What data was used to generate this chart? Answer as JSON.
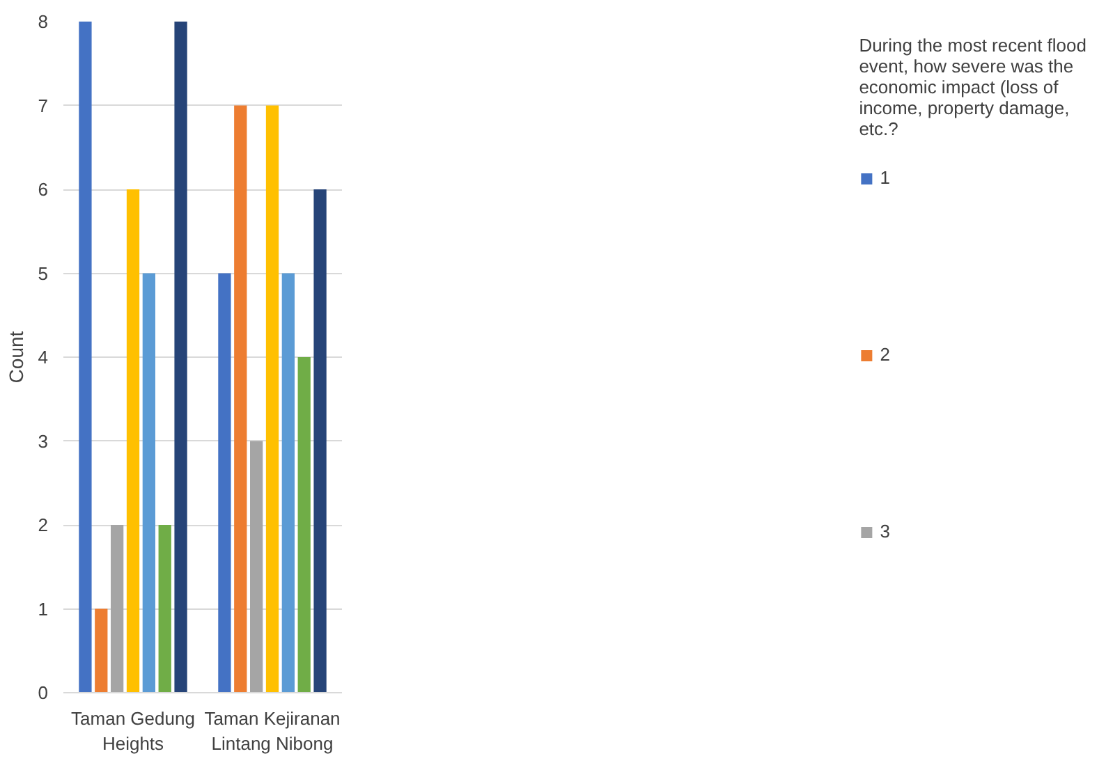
{
  "chart_data": {
    "type": "bar",
    "ylabel": "Count",
    "legend_title": "During the most recent flood event, how severe was the economic impact (loss of income, property damage, etc.?",
    "categories": [
      "Taman Gedung Heights",
      "Taman Kejiranan Lintang Nibong"
    ],
    "series": [
      {
        "name": "1",
        "color": "#4472c4",
        "values": [
          8,
          5
        ]
      },
      {
        "name": "2",
        "color": "#ed7d31",
        "values": [
          1,
          7
        ]
      },
      {
        "name": "3",
        "color": "#a5a5a5",
        "values": [
          2,
          3
        ]
      },
      {
        "color": "#ffc000",
        "values": [
          6,
          7
        ]
      },
      {
        "color": "#5b9bd5",
        "values": [
          5,
          5
        ]
      },
      {
        "color": "#70ad47",
        "values": [
          2,
          4
        ]
      },
      {
        "color": "#264478",
        "values": [
          8,
          6
        ]
      }
    ],
    "ylim": [
      0,
      8
    ],
    "yticks": [
      0,
      1,
      2,
      3,
      4,
      5,
      6,
      7,
      8
    ],
    "grid": "y",
    "legend": "right"
  }
}
